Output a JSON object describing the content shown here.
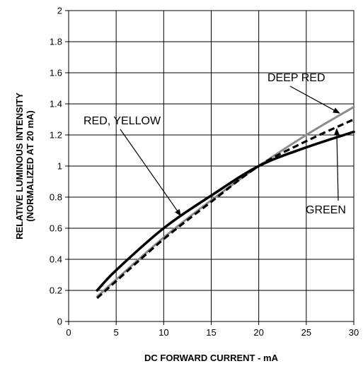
{
  "chart_data": {
    "type": "line",
    "title": "",
    "xlabel": "DC FORWARD CURRENT - mA",
    "ylabel_line1": "RELATIVE LUMINOUS INTENSITY",
    "ylabel_line2": "(NORMALIZED AT 20 mA)",
    "xlim": [
      0,
      30
    ],
    "ylim": [
      0,
      2
    ],
    "x_ticks": [
      0,
      5,
      10,
      15,
      20,
      25,
      30
    ],
    "y_ticks": [
      0,
      0.2,
      0.4,
      0.6,
      0.8,
      1,
      1.2,
      1.4,
      1.6,
      1.8,
      2
    ],
    "x_tick_labels": [
      "0",
      "5",
      "10",
      "15",
      "20",
      "25",
      "30"
    ],
    "y_tick_labels": [
      "0",
      "0.2",
      "0.4",
      "0.6",
      "0.8",
      "1",
      "1.2",
      "1.4",
      "1.6",
      "1.8",
      "2"
    ],
    "grid": true,
    "series": [
      {
        "key": "red-yellow",
        "color": "#000000",
        "style": "solid-thick",
        "x": [
          3,
          5,
          10,
          15,
          20,
          25,
          30
        ],
        "y": [
          0.2,
          0.33,
          0.6,
          0.81,
          1.0,
          1.12,
          1.22
        ]
      },
      {
        "key": "deep-red",
        "color": "#8c8c8c",
        "style": "solid",
        "x": [
          3,
          5,
          10,
          15,
          20,
          25,
          30
        ],
        "y": [
          0.16,
          0.27,
          0.54,
          0.78,
          1.0,
          1.2,
          1.38
        ]
      },
      {
        "key": "green",
        "color": "#000000",
        "style": "dashed",
        "x": [
          3,
          5,
          10,
          15,
          20,
          25,
          30
        ],
        "y": [
          0.15,
          0.26,
          0.53,
          0.77,
          1.0,
          1.16,
          1.3
        ]
      }
    ],
    "annotations": [
      {
        "text": "RED, YELLOW",
        "target": "red-yellow",
        "arrow_to": [
          11.8,
          0.68
        ]
      },
      {
        "text": "DEEP RED",
        "target": "deep-red",
        "arrow_to": [
          28.5,
          1.34
        ]
      },
      {
        "text": "GREEN",
        "target": "green",
        "arrow_to": [
          28.2,
          1.24
        ]
      }
    ]
  }
}
